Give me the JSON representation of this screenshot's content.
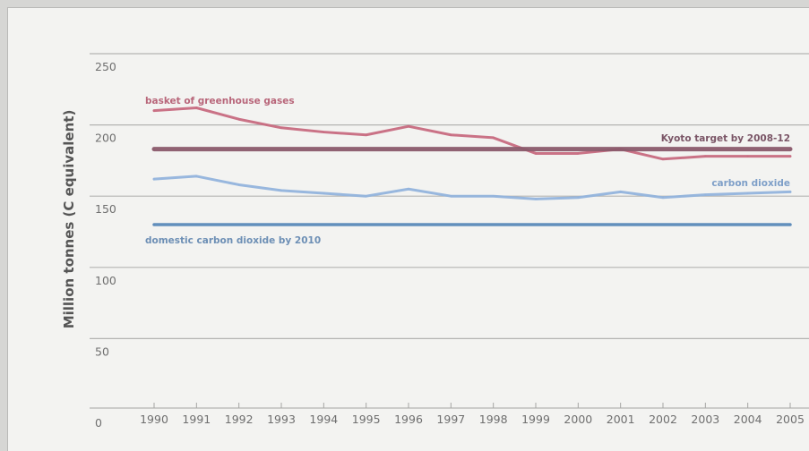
{
  "chart_data": {
    "type": "line",
    "title": "",
    "xlabel": "",
    "ylabel": "Million tonnes (C equivalent)",
    "ylim": [
      0,
      250
    ],
    "xlim": [
      1990,
      2005
    ],
    "y_ticks": [
      0,
      50,
      100,
      150,
      200,
      250
    ],
    "x_ticks": [
      1990,
      1991,
      1992,
      1993,
      1994,
      1995,
      1996,
      1997,
      1998,
      1999,
      2000,
      2001,
      2002,
      2003,
      2004,
      2005
    ],
    "grid": "horizontal",
    "series": [
      {
        "name": "basket of greenhouse gases",
        "color": "#c76a80",
        "x": [
          1990,
          1991,
          1992,
          1993,
          1994,
          1995,
          1996,
          1997,
          1998,
          1999,
          2000,
          2001,
          2002,
          2003,
          2004,
          2005
        ],
        "values": [
          210,
          212,
          204,
          198,
          195,
          193,
          199,
          193,
          191,
          180,
          180,
          183,
          176,
          178,
          178,
          178
        ]
      },
      {
        "name": "carbon dioxide",
        "color": "#92b3dc",
        "x": [
          1990,
          1991,
          1992,
          1993,
          1994,
          1995,
          1996,
          1997,
          1998,
          1999,
          2000,
          2001,
          2002,
          2003,
          2004,
          2005
        ],
        "values": [
          162,
          164,
          158,
          154,
          152,
          150,
          155,
          150,
          150,
          148,
          149,
          153,
          149,
          151,
          152,
          153
        ]
      },
      {
        "name": "Kyoto target by 2008-12",
        "color": "#8a5a6c",
        "x": [
          1990,
          2005
        ],
        "values": [
          183,
          183
        ]
      },
      {
        "name": "domestic carbon dioxide by 2010",
        "color": "#5a89b8",
        "x": [
          1990,
          2005
        ],
        "values": [
          130,
          130
        ]
      }
    ]
  }
}
